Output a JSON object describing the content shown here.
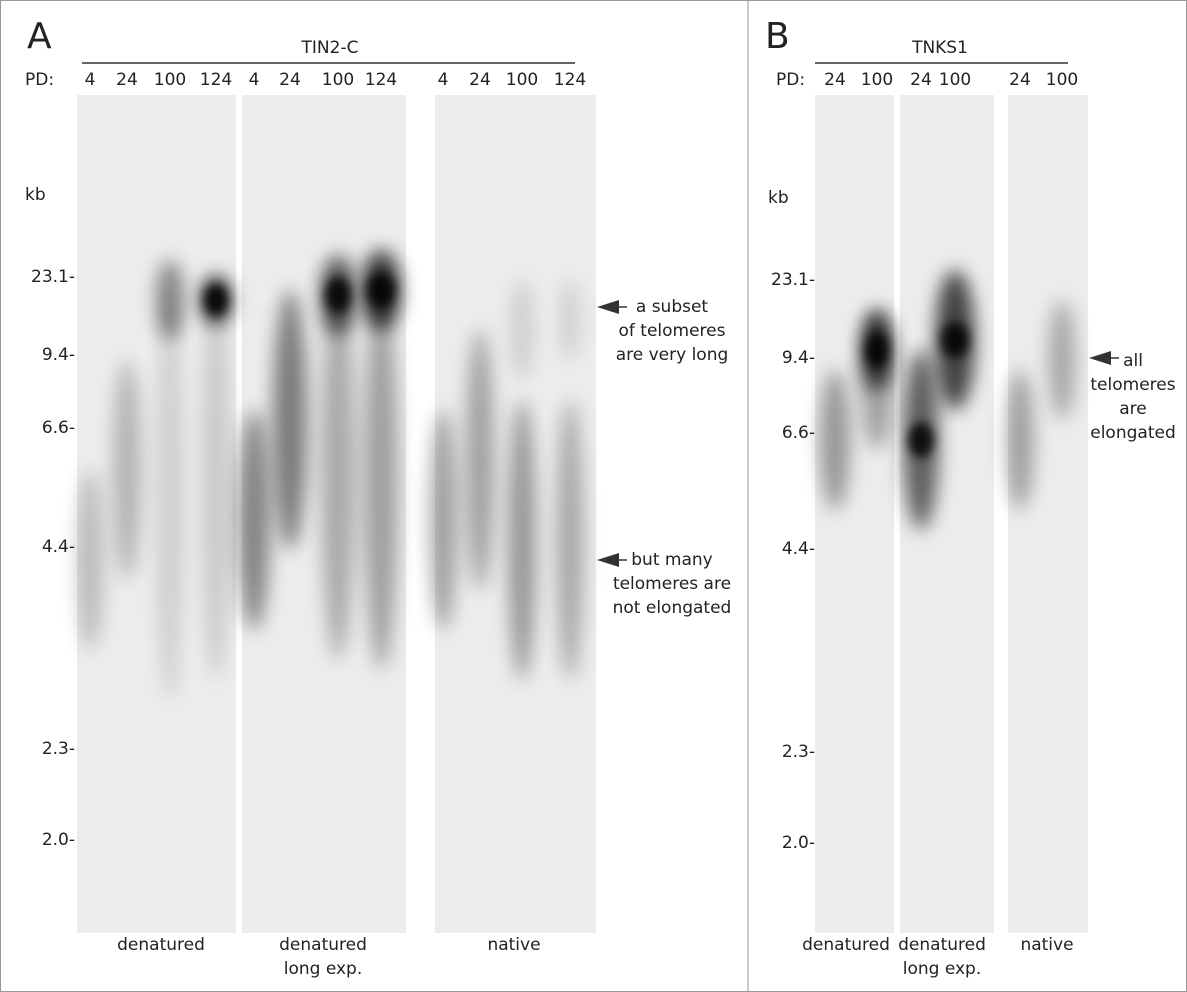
{
  "panels": [
    {
      "letter": "A",
      "header": "TIN2-C",
      "pd_label": "PD:",
      "lanes": [
        "4",
        "24",
        "100",
        "124",
        "4",
        "24",
        "100",
        "124",
        "4",
        "24",
        "100",
        "124"
      ],
      "kb_label": "kb",
      "markers": [
        "23.1-",
        "9.4-",
        "6.6-",
        "4.4-",
        "2.3-",
        "2.0-"
      ],
      "annotations": [
        {
          "lines": [
            "a subset",
            "of telomeres",
            "are very long"
          ]
        },
        {
          "lines": [
            "but many",
            "telomeres are",
            "not elongated"
          ]
        }
      ],
      "gels": [
        {
          "lines": [
            "denatured"
          ]
        },
        {
          "lines": [
            "denatured",
            "long exp."
          ]
        },
        {
          "lines": [
            "native"
          ]
        }
      ]
    },
    {
      "letter": "B",
      "header": "TNKS1",
      "pd_label": "PD:",
      "lanes": [
        "24",
        "100",
        "24",
        "100",
        "24",
        "100"
      ],
      "kb_label": "kb",
      "markers": [
        "23.1-",
        "9.4-",
        "6.6-",
        "4.4-",
        "2.3-",
        "2.0-"
      ],
      "annotations": [
        {
          "lines": [
            "all",
            "telomeres",
            "are",
            "elongated"
          ]
        }
      ],
      "gels": [
        {
          "lines": [
            "denatured"
          ]
        },
        {
          "lines": [
            "denatured",
            "long exp."
          ]
        },
        {
          "lines": [
            "native"
          ]
        }
      ]
    }
  ]
}
